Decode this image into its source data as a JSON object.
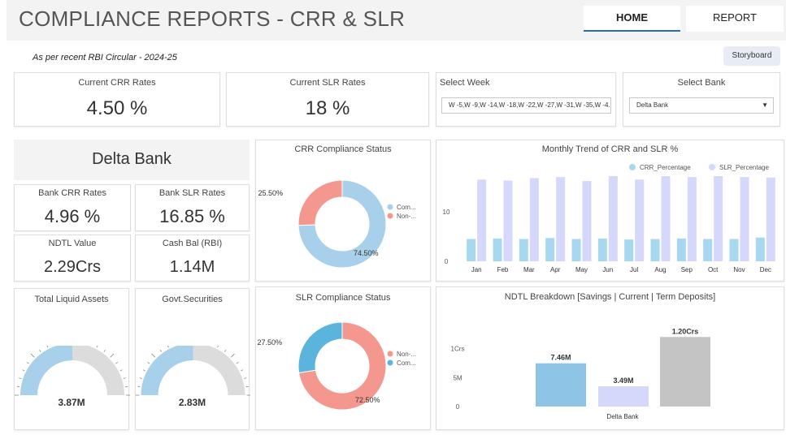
{
  "header": {
    "title": "COMPLIANCE REPORTS - CRR & SLR",
    "nav": [
      {
        "label": "HOME",
        "active": true
      },
      {
        "label": "REPORT",
        "active": false
      }
    ]
  },
  "subtitle": "As per recent RBI Circular - 2024-25",
  "storyboard_label": "Storyboard",
  "kpis": {
    "current_crr": {
      "label": "Current CRR Rates",
      "value": "4.50 %"
    },
    "current_slr": {
      "label": "Current SLR Rates",
      "value": "18 %"
    }
  },
  "filters": {
    "week": {
      "label": "Select Week",
      "value": "W -5,W -9,W -14,W -18,W -22,W -27,W -31,W -35,W -4..."
    },
    "bank": {
      "label": "Select Bank",
      "value": "Delta Bank"
    }
  },
  "bank_panel": {
    "name": "Delta Bank",
    "bank_crr": {
      "label": "Bank CRR Rates",
      "value": "4.96 %"
    },
    "bank_slr": {
      "label": "Bank SLR Rates",
      "value": "16.85 %"
    },
    "ndtl": {
      "label": "NDTL Value",
      "value": "2.29Crs"
    },
    "cash_bal": {
      "label": "Cash Bal (RBI)",
      "value": "1.14M"
    }
  },
  "gauges": {
    "liquid_assets": {
      "label": "Total Liquid Assets",
      "value": "3.87M",
      "fill": 0.5
    },
    "govt_securities": {
      "label": "Govt.Securities",
      "value": "2.83M",
      "fill": 0.5
    }
  },
  "colors": {
    "compliant": "#a8d0ea",
    "non_compliant": "#f4978e",
    "slr_compliant": "#5ab4dc",
    "crr_bar": "#a8d8f0",
    "slr_bar": "#d5d8fa",
    "gauge_fill": "#a8d0ea",
    "gauge_bg": "#dcdcdc",
    "ndtl_savings": "#8ec4e6",
    "ndtl_current": "#d5d8fa",
    "ndtl_term": "#c4c4c4"
  },
  "chart_data": [
    {
      "type": "pie",
      "title": "CRR Compliance Status",
      "slices": [
        {
          "name": "Com...",
          "value": 74.5,
          "label": "74.50%"
        },
        {
          "name": "Non-...",
          "value": 25.5,
          "label": "25.50%"
        }
      ]
    },
    {
      "type": "bar",
      "title": "Monthly Trend of CRR and SLR %",
      "categories": [
        "Jan",
        "Feb",
        "Mar",
        "Apr",
        "May",
        "Jun",
        "Jul",
        "Aug",
        "Sep",
        "Oct",
        "Nov",
        "Dec"
      ],
      "series": [
        {
          "name": "CRR_Percentage",
          "values": [
            4.5,
            4.6,
            4.5,
            4.7,
            4.5,
            4.6,
            4.4,
            4.5,
            4.6,
            4.5,
            4.5,
            4.8
          ]
        },
        {
          "name": "SLR_Percentage",
          "values": [
            16.5,
            16.3,
            16.8,
            17.0,
            16.2,
            17.2,
            16.5,
            17.2,
            17.0,
            17.2,
            17.0,
            16.9
          ]
        }
      ],
      "yticks": [
        "0",
        "10"
      ],
      "ylim": [
        0,
        19
      ]
    },
    {
      "type": "pie",
      "title": "SLR Compliance Status",
      "slices": [
        {
          "name": "Non-...",
          "value": 72.5,
          "label": "72.50%"
        },
        {
          "name": "Com...",
          "value": 27.5,
          "label": "27.50%"
        }
      ]
    },
    {
      "type": "bar",
      "title": "NDTL Breakdown [Savings | Current | Term Deposits]",
      "categories": [
        "Delta Bank"
      ],
      "series": [
        {
          "values": [
            7460000
          ],
          "label": "7.46M"
        },
        {
          "values": [
            3490000
          ],
          "label": "3.49M"
        },
        {
          "values": [
            12000000
          ],
          "label": "1.20Crs"
        }
      ],
      "yticks": [
        "0",
        "5M",
        "1Crs"
      ],
      "ylim": [
        0,
        14000000
      ]
    }
  ]
}
